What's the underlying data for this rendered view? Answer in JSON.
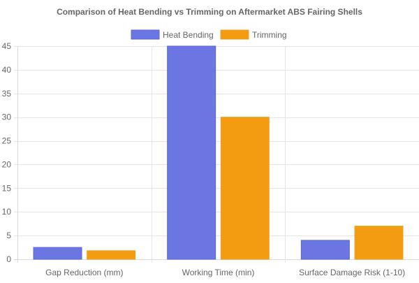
{
  "chart_data": {
    "type": "bar",
    "title": "Comparison of Heat Bending vs Trimming on Aftermarket ABS Fairing Shells",
    "categories": [
      "Gap Reduction (mm)",
      "Working Time (min)",
      "Surface Damage Risk (1-10)"
    ],
    "series": [
      {
        "name": "Heat Bending",
        "values": [
          2.5,
          45,
          4
        ],
        "color": "#6b76e3",
        "border": "#5b67e0"
      },
      {
        "name": "Trimming",
        "values": [
          1.8,
          30,
          7
        ],
        "color": "#f39c12",
        "border": "#f0a125"
      }
    ],
    "xlabel": "",
    "ylabel": "",
    "ylim": [
      0,
      45
    ],
    "yticks": [
      0,
      5,
      10,
      15,
      20,
      25,
      30,
      35,
      40,
      45
    ],
    "grid": true,
    "legend_position": "top"
  }
}
